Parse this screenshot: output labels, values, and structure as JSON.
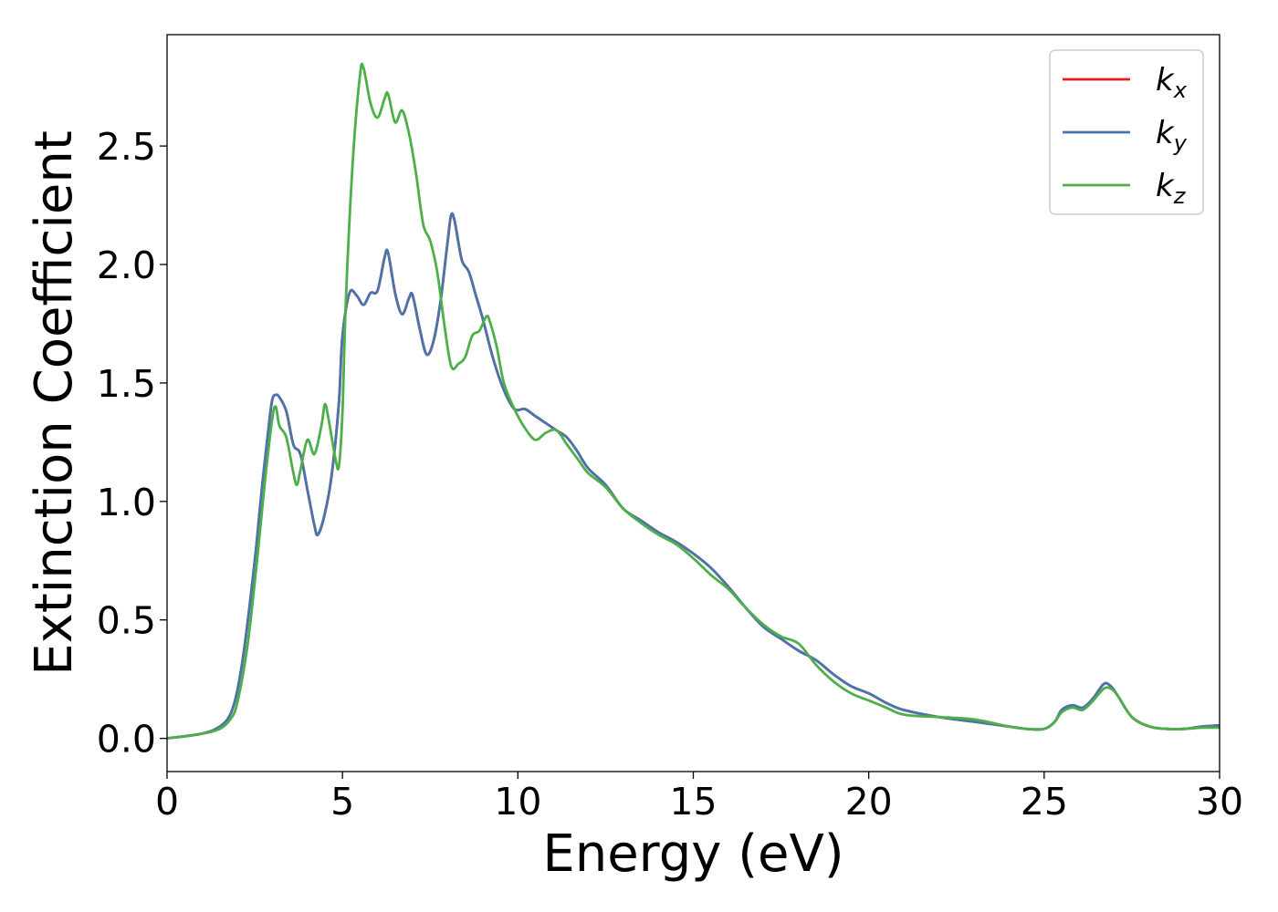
{
  "chart_data": {
    "type": "line",
    "title": "",
    "xlabel": "Energy (eV)",
    "ylabel": "Extinction Coefficient",
    "xlim": [
      0,
      30
    ],
    "ylim": [
      -0.14,
      2.97
    ],
    "grid": false,
    "legend_position": "top-right",
    "xticks": [
      0,
      5,
      10,
      15,
      20,
      25,
      30
    ],
    "xtick_labels": [
      "0",
      "5",
      "10",
      "15",
      "20",
      "25",
      "30"
    ],
    "yticks": [
      0.0,
      0.5,
      1.0,
      1.5,
      2.0,
      2.5
    ],
    "ytick_labels": [
      "0.0",
      "0.5",
      "1.0",
      "1.5",
      "2.0",
      "2.5"
    ],
    "series": [
      {
        "name": "k_x",
        "legend_base": "k",
        "legend_sub": "x",
        "color": "#e41a1c",
        "x": [
          0,
          1,
          1.5,
          1.8,
          2.0,
          2.2,
          2.5,
          2.7,
          2.9,
          3.0,
          3.1,
          3.2,
          3.4,
          3.6,
          3.8,
          4.0,
          4.2,
          4.3,
          4.5,
          4.7,
          4.9,
          5.0,
          5.2,
          5.4,
          5.6,
          5.8,
          6.0,
          6.2,
          6.3,
          6.5,
          6.7,
          6.9,
          7.0,
          7.2,
          7.4,
          7.6,
          7.8,
          8.0,
          8.1,
          8.2,
          8.4,
          8.6,
          8.8,
          9.0,
          9.3,
          9.6,
          9.9,
          10.2,
          10.5,
          10.8,
          11.1,
          11.4,
          11.7,
          12.0,
          12.5,
          13.0,
          13.5,
          14.0,
          14.5,
          15.0,
          15.5,
          16.0,
          16.5,
          17.0,
          17.5,
          18.0,
          18.5,
          19.0,
          19.5,
          20.0,
          20.5,
          21.0,
          22.0,
          23.0,
          24.0,
          24.5,
          25.0,
          25.3,
          25.5,
          25.8,
          26.1,
          26.4,
          26.7,
          26.9,
          27.1,
          27.5,
          28.0,
          28.5,
          29.0,
          29.5,
          30.0
        ],
        "y": [
          0.0,
          0.02,
          0.05,
          0.1,
          0.2,
          0.38,
          0.75,
          1.05,
          1.32,
          1.43,
          1.45,
          1.44,
          1.38,
          1.24,
          1.2,
          1.05,
          0.9,
          0.86,
          0.95,
          1.12,
          1.42,
          1.7,
          1.88,
          1.87,
          1.83,
          1.88,
          1.89,
          2.03,
          2.05,
          1.88,
          1.79,
          1.86,
          1.87,
          1.73,
          1.62,
          1.68,
          1.85,
          2.1,
          2.21,
          2.18,
          2.02,
          1.97,
          1.87,
          1.77,
          1.6,
          1.47,
          1.39,
          1.39,
          1.36,
          1.33,
          1.3,
          1.27,
          1.21,
          1.14,
          1.07,
          0.97,
          0.92,
          0.87,
          0.83,
          0.78,
          0.72,
          0.64,
          0.55,
          0.47,
          0.42,
          0.37,
          0.33,
          0.27,
          0.22,
          0.19,
          0.15,
          0.12,
          0.09,
          0.07,
          0.05,
          0.04,
          0.04,
          0.07,
          0.12,
          0.14,
          0.13,
          0.17,
          0.23,
          0.22,
          0.18,
          0.09,
          0.05,
          0.04,
          0.04,
          0.05,
          0.055
        ]
      },
      {
        "name": "k_y",
        "legend_base": "k",
        "legend_sub": "y",
        "color": "#4a74ab",
        "x": [
          0,
          1,
          1.5,
          1.8,
          2.0,
          2.2,
          2.5,
          2.7,
          2.9,
          3.0,
          3.1,
          3.2,
          3.4,
          3.6,
          3.8,
          4.0,
          4.2,
          4.3,
          4.5,
          4.7,
          4.9,
          5.0,
          5.2,
          5.4,
          5.6,
          5.8,
          6.0,
          6.2,
          6.3,
          6.5,
          6.7,
          6.9,
          7.0,
          7.2,
          7.4,
          7.6,
          7.8,
          8.0,
          8.1,
          8.2,
          8.4,
          8.6,
          8.8,
          9.0,
          9.3,
          9.6,
          9.9,
          10.2,
          10.5,
          10.8,
          11.1,
          11.4,
          11.7,
          12.0,
          12.5,
          13.0,
          13.5,
          14.0,
          14.5,
          15.0,
          15.5,
          16.0,
          16.5,
          17.0,
          17.5,
          18.0,
          18.5,
          19.0,
          19.5,
          20.0,
          20.5,
          21.0,
          22.0,
          23.0,
          24.0,
          24.5,
          25.0,
          25.3,
          25.5,
          25.8,
          26.1,
          26.4,
          26.7,
          26.9,
          27.1,
          27.5,
          28.0,
          28.5,
          29.0,
          29.5,
          30.0
        ],
        "y": [
          0.0,
          0.02,
          0.05,
          0.1,
          0.2,
          0.38,
          0.75,
          1.05,
          1.32,
          1.43,
          1.45,
          1.44,
          1.38,
          1.24,
          1.2,
          1.05,
          0.9,
          0.86,
          0.95,
          1.12,
          1.42,
          1.7,
          1.88,
          1.87,
          1.83,
          1.88,
          1.89,
          2.03,
          2.05,
          1.88,
          1.79,
          1.86,
          1.87,
          1.73,
          1.62,
          1.68,
          1.85,
          2.1,
          2.21,
          2.18,
          2.02,
          1.97,
          1.87,
          1.77,
          1.6,
          1.47,
          1.39,
          1.39,
          1.36,
          1.33,
          1.3,
          1.27,
          1.21,
          1.14,
          1.07,
          0.97,
          0.92,
          0.87,
          0.83,
          0.78,
          0.72,
          0.64,
          0.55,
          0.47,
          0.42,
          0.37,
          0.33,
          0.27,
          0.22,
          0.19,
          0.15,
          0.12,
          0.09,
          0.07,
          0.05,
          0.04,
          0.04,
          0.07,
          0.12,
          0.14,
          0.13,
          0.17,
          0.23,
          0.22,
          0.18,
          0.09,
          0.05,
          0.04,
          0.04,
          0.05,
          0.055
        ]
      },
      {
        "name": "k_z",
        "legend_base": "k",
        "legend_sub": "z",
        "color": "#4daf4a",
        "x": [
          0,
          1,
          1.5,
          1.8,
          2.0,
          2.3,
          2.6,
          2.8,
          3.0,
          3.1,
          3.2,
          3.4,
          3.6,
          3.7,
          3.8,
          4.0,
          4.2,
          4.4,
          4.5,
          4.6,
          4.8,
          4.9,
          5.0,
          5.1,
          5.3,
          5.5,
          5.6,
          5.8,
          6.0,
          6.2,
          6.3,
          6.5,
          6.7,
          6.9,
          7.1,
          7.3,
          7.5,
          7.7,
          7.9,
          8.1,
          8.3,
          8.5,
          8.7,
          8.9,
          9.1,
          9.2,
          9.4,
          9.6,
          9.9,
          10.2,
          10.5,
          10.8,
          11.1,
          11.4,
          11.7,
          12.0,
          12.5,
          13.0,
          13.5,
          14.0,
          14.5,
          15.0,
          15.5,
          16.0,
          16.5,
          17.0,
          17.5,
          18.0,
          18.5,
          19.0,
          19.5,
          20.0,
          20.5,
          21.0,
          22.0,
          23.0,
          24.0,
          24.5,
          25.0,
          25.3,
          25.5,
          25.8,
          26.1,
          26.4,
          26.7,
          26.9,
          27.1,
          27.5,
          28.0,
          28.5,
          29.0,
          29.5,
          30.0
        ],
        "y": [
          0.0,
          0.02,
          0.04,
          0.08,
          0.15,
          0.4,
          0.8,
          1.1,
          1.35,
          1.4,
          1.32,
          1.27,
          1.12,
          1.07,
          1.13,
          1.26,
          1.2,
          1.32,
          1.41,
          1.35,
          1.18,
          1.15,
          1.38,
          1.86,
          2.45,
          2.8,
          2.83,
          2.68,
          2.62,
          2.7,
          2.72,
          2.6,
          2.65,
          2.55,
          2.38,
          2.17,
          2.1,
          1.97,
          1.75,
          1.57,
          1.58,
          1.61,
          1.7,
          1.72,
          1.78,
          1.76,
          1.65,
          1.5,
          1.39,
          1.31,
          1.26,
          1.29,
          1.3,
          1.24,
          1.18,
          1.12,
          1.06,
          0.97,
          0.91,
          0.86,
          0.82,
          0.76,
          0.69,
          0.63,
          0.55,
          0.48,
          0.43,
          0.4,
          0.31,
          0.24,
          0.19,
          0.16,
          0.13,
          0.1,
          0.09,
          0.08,
          0.05,
          0.04,
          0.04,
          0.07,
          0.11,
          0.13,
          0.12,
          0.16,
          0.21,
          0.21,
          0.18,
          0.09,
          0.05,
          0.04,
          0.04,
          0.045,
          0.045
        ]
      }
    ]
  }
}
